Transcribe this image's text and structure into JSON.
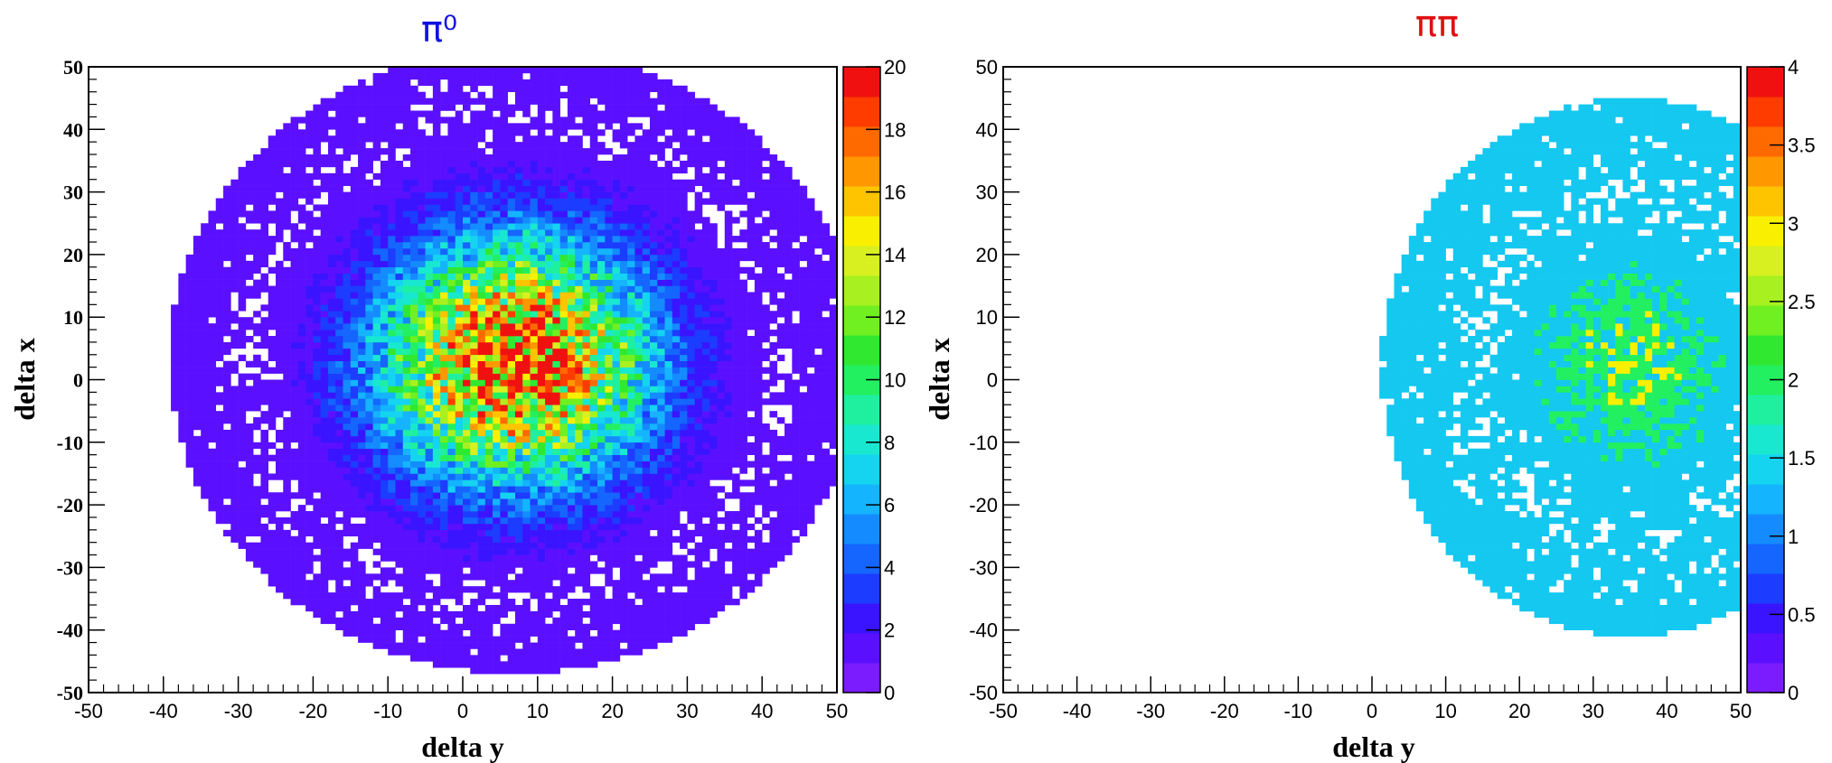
{
  "chart_data": [
    {
      "type": "heatmap",
      "title": "π⁰",
      "title_color": "#1010e0",
      "xlabel": "delta y",
      "ylabel": "delta x",
      "xlim": [
        -50,
        50
      ],
      "ylim": [
        -50,
        50
      ],
      "x_ticks": [
        "-50",
        "-40",
        "-30",
        "-20",
        "-10",
        "0",
        "10",
        "20",
        "30",
        "40",
        "50"
      ],
      "y_ticks": [
        "-50",
        "-40",
        "-30",
        "-20",
        "-10",
        "0",
        "10",
        "20",
        "30",
        "40",
        "50"
      ],
      "colorbar": {
        "range": [
          0,
          20
        ],
        "ticks": [
          "0",
          "2",
          "4",
          "6",
          "8",
          "10",
          "12",
          "14",
          "16",
          "18",
          "20"
        ]
      },
      "bins": 100,
      "distribution": {
        "center_x": 7,
        "center_y": 3,
        "sigma_x": 12.5,
        "sigma_y": 13.5,
        "peak": 19
      },
      "grid": false
    },
    {
      "type": "heatmap",
      "title": "ππ",
      "title_color": "#e01010",
      "xlabel": "delta y",
      "ylabel": "delta x",
      "xlim": [
        -50,
        50
      ],
      "ylim": [
        -50,
        50
      ],
      "x_ticks": [
        "-50",
        "-40",
        "-30",
        "-20",
        "-10",
        "0",
        "10",
        "20",
        "30",
        "40",
        "50"
      ],
      "y_ticks": [
        "-50",
        "-40",
        "-30",
        "-20",
        "-10",
        "0",
        "10",
        "20",
        "30",
        "40",
        "50"
      ],
      "colorbar": {
        "range": [
          0,
          4
        ],
        "ticks": [
          "0",
          "0.5",
          "1",
          "1.5",
          "2",
          "2.5",
          "3",
          "3.5",
          "4"
        ]
      },
      "bins": 100,
      "distribution": {
        "center_x": 35,
        "center_y": 2,
        "sigma_x": 11,
        "sigma_y": 14,
        "peak": 4
      },
      "grid": false
    }
  ],
  "palette": [
    "#7a1cff",
    "#5a10ff",
    "#3a14ff",
    "#1c3cff",
    "#1466ff",
    "#148cff",
    "#14b4ff",
    "#14d4f0",
    "#18e8d0",
    "#1ef0a0",
    "#22f060",
    "#30e830",
    "#70f020",
    "#a8f020",
    "#d8f020",
    "#f8f000",
    "#ffc400",
    "#ff9800",
    "#ff6a00",
    "#ff3c00",
    "#f01010"
  ]
}
